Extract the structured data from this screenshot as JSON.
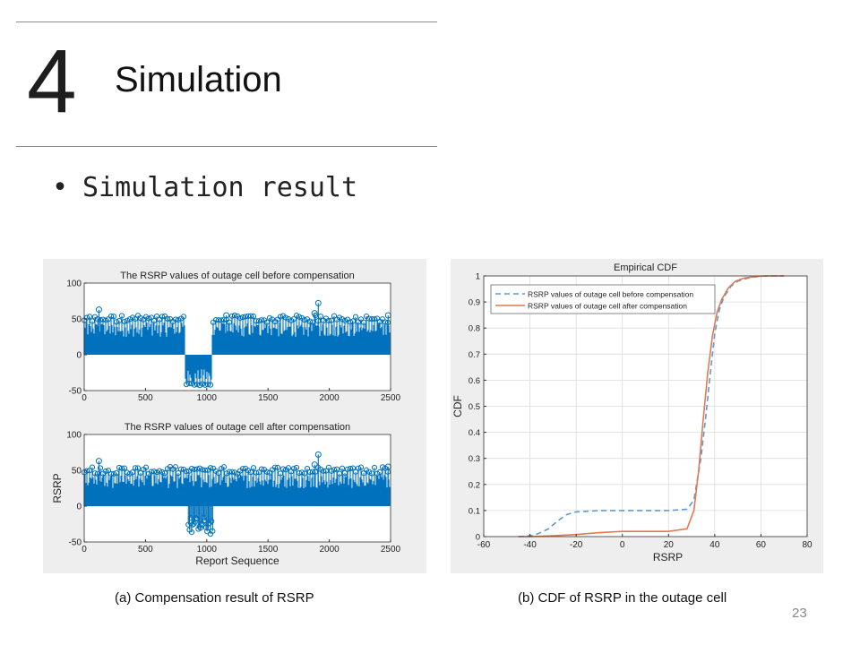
{
  "slide": {
    "section_number": "4",
    "section_title": "Simulation",
    "bullet": "Simulation result",
    "caption_a": "(a) Compensation result of RSRP",
    "caption_b": "(b) CDF of RSRP in the outage cell",
    "page_number": "23"
  },
  "colors": {
    "stem": "#0072bd",
    "before": "#5b9bd5",
    "after": "#e07b4f",
    "grid": "#dcdcdc"
  },
  "chart_data": [
    {
      "type": "scatter",
      "style": "stem plot",
      "title": "The RSRP values of outage cell before compensation",
      "xlabel": "",
      "ylabel": "",
      "xlim": [
        0,
        2500
      ],
      "ylim": [
        -50,
        100
      ],
      "xticks": [
        0,
        500,
        1000,
        1500,
        2000,
        2500
      ],
      "yticks": [
        -50,
        0,
        50,
        100
      ],
      "segments": [
        {
          "x_range": [
            0,
            820
          ],
          "typical": [
            25,
            45
          ],
          "peak": 55
        },
        {
          "x_range": [
            820,
            1040
          ],
          "typical": [
            -40,
            -20
          ],
          "peak": -43
        },
        {
          "x_range": [
            1040,
            2500
          ],
          "typical": [
            25,
            45
          ],
          "peak": 55
        }
      ],
      "outliers": [
        [
          120,
          63
        ],
        [
          1910,
          72
        ],
        [
          1880,
          58
        ],
        [
          1160,
          55
        ],
        [
          2480,
          55
        ]
      ]
    },
    {
      "type": "scatter",
      "style": "stem plot",
      "title": "The RSRP values of outage cell after compensation",
      "xlabel": "Report Sequence",
      "ylabel": "RSRP",
      "xlim": [
        0,
        2500
      ],
      "ylim": [
        -50,
        100
      ],
      "xticks": [
        0,
        500,
        1000,
        1500,
        2000,
        2500
      ],
      "yticks": [
        -50,
        0,
        50,
        100
      ],
      "segments": [
        {
          "x_range": [
            0,
            2500
          ],
          "typical": [
            25,
            45
          ],
          "peak": 55
        }
      ],
      "outliers": [
        [
          120,
          63
        ],
        [
          1910,
          72
        ],
        [
          1880,
          58
        ],
        [
          2480,
          55
        ]
      ],
      "negative_stems_range": [
        850,
        1050
      ],
      "negative_range": [
        -40,
        -15
      ]
    },
    {
      "type": "line",
      "title": "Empirical CDF",
      "xlabel": "RSRP",
      "ylabel": "CDF",
      "xlim": [
        -60,
        80
      ],
      "ylim": [
        0,
        1
      ],
      "xticks": [
        -60,
        -40,
        -20,
        0,
        20,
        40,
        60,
        80
      ],
      "yticks": [
        0,
        0.1,
        0.2,
        0.3,
        0.4,
        0.5,
        0.6,
        0.7,
        0.8,
        0.9,
        1
      ],
      "grid": true,
      "legend_position": "top-left",
      "series": [
        {
          "name": "RSRP values of outage cell before compensation",
          "line_style": "dashed",
          "x": [
            -45,
            -38,
            -32,
            -28,
            -24,
            -20,
            -10,
            0,
            20,
            28,
            31,
            34,
            36,
            38,
            40,
            42,
            44,
            47,
            50,
            55,
            60,
            65,
            70
          ],
          "y": [
            0,
            0.005,
            0.03,
            0.06,
            0.085,
            0.095,
            0.1,
            0.1,
            0.1,
            0.105,
            0.14,
            0.3,
            0.45,
            0.62,
            0.78,
            0.87,
            0.92,
            0.96,
            0.98,
            0.993,
            0.999,
            1,
            1
          ]
        },
        {
          "name": "RSRP values of outage cell after compensation",
          "line_style": "solid",
          "x": [
            -45,
            -40,
            -30,
            -20,
            -10,
            0,
            20,
            28,
            31,
            33,
            35,
            37,
            39,
            41,
            43,
            46,
            49,
            53,
            58,
            62,
            66,
            70
          ],
          "y": [
            0,
            0,
            0.003,
            0.008,
            0.015,
            0.02,
            0.02,
            0.03,
            0.1,
            0.25,
            0.45,
            0.63,
            0.77,
            0.86,
            0.91,
            0.955,
            0.98,
            0.992,
            0.998,
            1,
            1,
            1
          ]
        }
      ]
    }
  ]
}
